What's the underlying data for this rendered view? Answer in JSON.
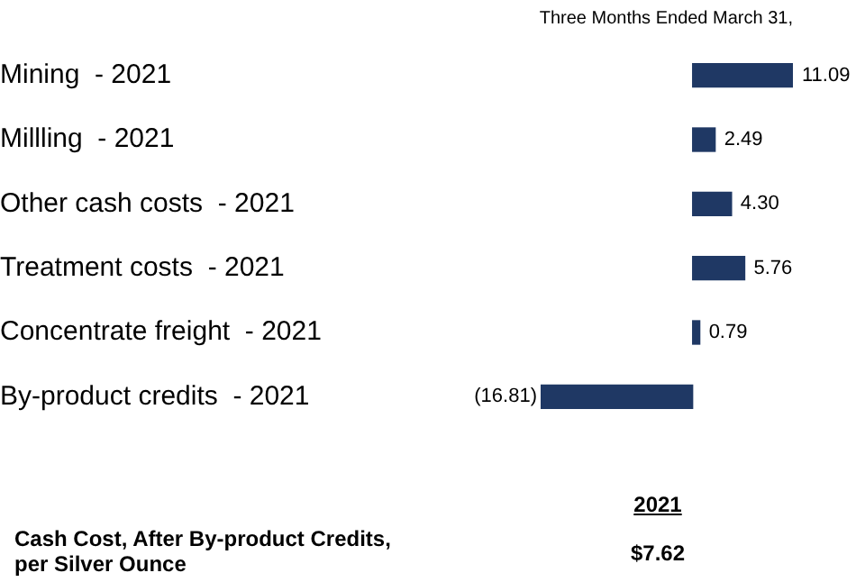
{
  "chart_data": {
    "type": "bar",
    "orientation": "horizontal",
    "title": "Three Months Ended March 31,",
    "categories": [
      "Mining  - 2021",
      "Millling  - 2021",
      "Other cash costs  - 2021",
      "Treatment costs  - 2021",
      "Concentrate freight  - 2021",
      "By-product credits  - 2021"
    ],
    "values": [
      11.09,
      2.49,
      4.3,
      5.76,
      0.79,
      -16.81
    ],
    "value_labels": [
      "11.09",
      "2.49",
      "4.30",
      "5.76",
      "0.79",
      "(16.81)"
    ],
    "color": "#1f3864",
    "annotations": [
      "2021",
      "Cash Cost, After By-product Credits, per Silver Ounce",
      "$7.62"
    ]
  }
}
